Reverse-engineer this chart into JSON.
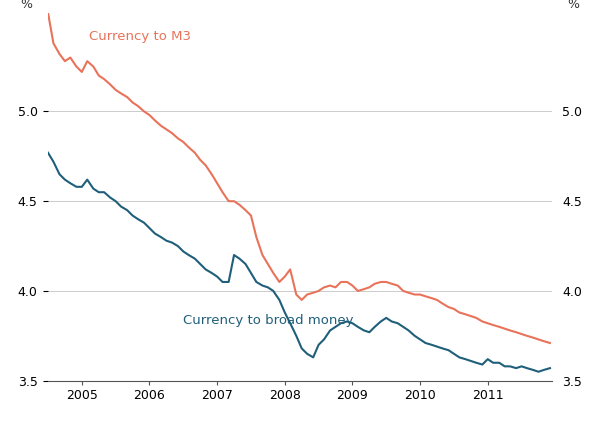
{
  "ylabel_left": "%",
  "ylabel_right": "%",
  "ylim": [
    3.5,
    5.55
  ],
  "yticks": [
    3.5,
    4.0,
    4.5,
    5.0
  ],
  "color_m3": "#E8735A",
  "color_broad": "#1F5F7A",
  "linewidth": 1.5,
  "bg_color": "#FFFFFF",
  "grid_color": "#CCCCCC",
  "label_m3": "Currency to M3",
  "label_broad": "Currency to broad money",
  "x_start_year": 2004.5,
  "x_end_year": 2011.95,
  "xtick_years": [
    2005,
    2006,
    2007,
    2008,
    2009,
    2010,
    2011
  ],
  "ann_m3_x": 2005.1,
  "ann_m3_y": 5.38,
  "ann_broad_x": 2006.5,
  "ann_broad_y": 3.87,
  "m3_data": [
    [
      2004.5,
      5.55
    ],
    [
      2004.58,
      5.38
    ],
    [
      2004.67,
      5.32
    ],
    [
      2004.75,
      5.28
    ],
    [
      2004.83,
      5.3
    ],
    [
      2004.92,
      5.25
    ],
    [
      2005.0,
      5.22
    ],
    [
      2005.08,
      5.28
    ],
    [
      2005.17,
      5.25
    ],
    [
      2005.25,
      5.2
    ],
    [
      2005.33,
      5.18
    ],
    [
      2005.42,
      5.15
    ],
    [
      2005.5,
      5.12
    ],
    [
      2005.58,
      5.1
    ],
    [
      2005.67,
      5.08
    ],
    [
      2005.75,
      5.05
    ],
    [
      2005.83,
      5.03
    ],
    [
      2005.92,
      5.0
    ],
    [
      2006.0,
      4.98
    ],
    [
      2006.08,
      4.95
    ],
    [
      2006.17,
      4.92
    ],
    [
      2006.25,
      4.9
    ],
    [
      2006.33,
      4.88
    ],
    [
      2006.42,
      4.85
    ],
    [
      2006.5,
      4.83
    ],
    [
      2006.58,
      4.8
    ],
    [
      2006.67,
      4.77
    ],
    [
      2006.75,
      4.73
    ],
    [
      2006.83,
      4.7
    ],
    [
      2006.92,
      4.65
    ],
    [
      2007.0,
      4.6
    ],
    [
      2007.08,
      4.55
    ],
    [
      2007.17,
      4.5
    ],
    [
      2007.25,
      4.5
    ],
    [
      2007.33,
      4.48
    ],
    [
      2007.42,
      4.45
    ],
    [
      2007.5,
      4.42
    ],
    [
      2007.58,
      4.3
    ],
    [
      2007.67,
      4.2
    ],
    [
      2007.75,
      4.15
    ],
    [
      2007.83,
      4.1
    ],
    [
      2007.92,
      4.05
    ],
    [
      2008.0,
      4.08
    ],
    [
      2008.08,
      4.12
    ],
    [
      2008.17,
      3.98
    ],
    [
      2008.25,
      3.95
    ],
    [
      2008.33,
      3.98
    ],
    [
      2008.42,
      3.99
    ],
    [
      2008.5,
      4.0
    ],
    [
      2008.58,
      4.02
    ],
    [
      2008.67,
      4.03
    ],
    [
      2008.75,
      4.02
    ],
    [
      2008.83,
      4.05
    ],
    [
      2008.92,
      4.05
    ],
    [
      2009.0,
      4.03
    ],
    [
      2009.08,
      4.0
    ],
    [
      2009.17,
      4.01
    ],
    [
      2009.25,
      4.02
    ],
    [
      2009.33,
      4.04
    ],
    [
      2009.42,
      4.05
    ],
    [
      2009.5,
      4.05
    ],
    [
      2009.58,
      4.04
    ],
    [
      2009.67,
      4.03
    ],
    [
      2009.75,
      4.0
    ],
    [
      2009.83,
      3.99
    ],
    [
      2009.92,
      3.98
    ],
    [
      2010.0,
      3.98
    ],
    [
      2010.08,
      3.97
    ],
    [
      2010.17,
      3.96
    ],
    [
      2010.25,
      3.95
    ],
    [
      2010.33,
      3.93
    ],
    [
      2010.42,
      3.91
    ],
    [
      2010.5,
      3.9
    ],
    [
      2010.58,
      3.88
    ],
    [
      2010.67,
      3.87
    ],
    [
      2010.75,
      3.86
    ],
    [
      2010.83,
      3.85
    ],
    [
      2010.92,
      3.83
    ],
    [
      2011.0,
      3.82
    ],
    [
      2011.08,
      3.81
    ],
    [
      2011.17,
      3.8
    ],
    [
      2011.25,
      3.79
    ],
    [
      2011.33,
      3.78
    ],
    [
      2011.42,
      3.77
    ],
    [
      2011.5,
      3.76
    ],
    [
      2011.58,
      3.75
    ],
    [
      2011.67,
      3.74
    ],
    [
      2011.75,
      3.73
    ],
    [
      2011.83,
      3.72
    ],
    [
      2011.92,
      3.71
    ]
  ],
  "broad_data": [
    [
      2004.5,
      4.77
    ],
    [
      2004.58,
      4.72
    ],
    [
      2004.67,
      4.65
    ],
    [
      2004.75,
      4.62
    ],
    [
      2004.83,
      4.6
    ],
    [
      2004.92,
      4.58
    ],
    [
      2005.0,
      4.58
    ],
    [
      2005.08,
      4.62
    ],
    [
      2005.17,
      4.57
    ],
    [
      2005.25,
      4.55
    ],
    [
      2005.33,
      4.55
    ],
    [
      2005.42,
      4.52
    ],
    [
      2005.5,
      4.5
    ],
    [
      2005.58,
      4.47
    ],
    [
      2005.67,
      4.45
    ],
    [
      2005.75,
      4.42
    ],
    [
      2005.83,
      4.4
    ],
    [
      2005.92,
      4.38
    ],
    [
      2006.0,
      4.35
    ],
    [
      2006.08,
      4.32
    ],
    [
      2006.17,
      4.3
    ],
    [
      2006.25,
      4.28
    ],
    [
      2006.33,
      4.27
    ],
    [
      2006.42,
      4.25
    ],
    [
      2006.5,
      4.22
    ],
    [
      2006.58,
      4.2
    ],
    [
      2006.67,
      4.18
    ],
    [
      2006.75,
      4.15
    ],
    [
      2006.83,
      4.12
    ],
    [
      2006.92,
      4.1
    ],
    [
      2007.0,
      4.08
    ],
    [
      2007.08,
      4.05
    ],
    [
      2007.17,
      4.05
    ],
    [
      2007.25,
      4.2
    ],
    [
      2007.33,
      4.18
    ],
    [
      2007.42,
      4.15
    ],
    [
      2007.5,
      4.1
    ],
    [
      2007.58,
      4.05
    ],
    [
      2007.67,
      4.03
    ],
    [
      2007.75,
      4.02
    ],
    [
      2007.83,
      4.0
    ],
    [
      2007.92,
      3.95
    ],
    [
      2008.0,
      3.88
    ],
    [
      2008.08,
      3.82
    ],
    [
      2008.17,
      3.75
    ],
    [
      2008.25,
      3.68
    ],
    [
      2008.33,
      3.65
    ],
    [
      2008.42,
      3.63
    ],
    [
      2008.5,
      3.7
    ],
    [
      2008.58,
      3.73
    ],
    [
      2008.67,
      3.78
    ],
    [
      2008.75,
      3.8
    ],
    [
      2008.83,
      3.82
    ],
    [
      2008.92,
      3.83
    ],
    [
      2009.0,
      3.82
    ],
    [
      2009.08,
      3.8
    ],
    [
      2009.17,
      3.78
    ],
    [
      2009.25,
      3.77
    ],
    [
      2009.33,
      3.8
    ],
    [
      2009.42,
      3.83
    ],
    [
      2009.5,
      3.85
    ],
    [
      2009.58,
      3.83
    ],
    [
      2009.67,
      3.82
    ],
    [
      2009.75,
      3.8
    ],
    [
      2009.83,
      3.78
    ],
    [
      2009.92,
      3.75
    ],
    [
      2010.0,
      3.73
    ],
    [
      2010.08,
      3.71
    ],
    [
      2010.17,
      3.7
    ],
    [
      2010.25,
      3.69
    ],
    [
      2010.33,
      3.68
    ],
    [
      2010.42,
      3.67
    ],
    [
      2010.5,
      3.65
    ],
    [
      2010.58,
      3.63
    ],
    [
      2010.67,
      3.62
    ],
    [
      2010.75,
      3.61
    ],
    [
      2010.83,
      3.6
    ],
    [
      2010.92,
      3.59
    ],
    [
      2011.0,
      3.62
    ],
    [
      2011.08,
      3.6
    ],
    [
      2011.17,
      3.6
    ],
    [
      2011.25,
      3.58
    ],
    [
      2011.33,
      3.58
    ],
    [
      2011.42,
      3.57
    ],
    [
      2011.5,
      3.58
    ],
    [
      2011.58,
      3.57
    ],
    [
      2011.67,
      3.56
    ],
    [
      2011.75,
      3.55
    ],
    [
      2011.83,
      3.56
    ],
    [
      2011.92,
      3.57
    ]
  ]
}
